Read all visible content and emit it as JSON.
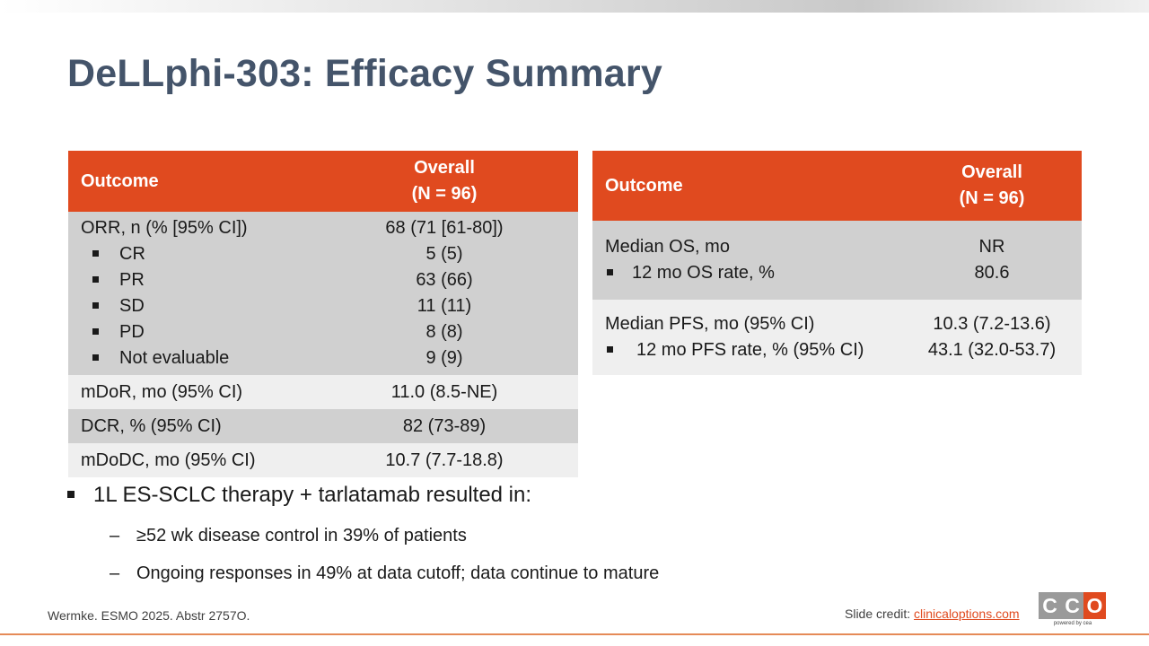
{
  "slide": {
    "title": "DeLLphi-303: Efficacy Summary"
  },
  "left_table": {
    "header": {
      "outcome": "Outcome",
      "overall_line1": "Overall",
      "overall_line2": "(N = 96)"
    },
    "orr": {
      "label": "ORR, n (% [95% CI])",
      "value": "68 (71 [61-80])",
      "items": [
        {
          "label": "CR",
          "value": "5 (5)"
        },
        {
          "label": "PR",
          "value": "63 (66)"
        },
        {
          "label": "SD",
          "value": "11 (11)"
        },
        {
          "label": "PD",
          "value": "8 (8)"
        },
        {
          "label": "Not evaluable",
          "value": "9 (9)"
        }
      ]
    },
    "mdor": {
      "label": "mDoR, mo (95% CI)",
      "value": "11.0 (8.5-NE)"
    },
    "dcr": {
      "label": "DCR, % (95% CI)",
      "value": "82 (73-89)"
    },
    "mdodc": {
      "label": "mDoDC, mo (95% CI)",
      "value": "10.7 (7.7-18.8)"
    }
  },
  "right_table": {
    "header": {
      "outcome": "Outcome",
      "overall_line1": "Overall",
      "overall_line2": "(N = 96)"
    },
    "os": {
      "label": "Median OS, mo",
      "value": "NR",
      "sub_label": "12 mo OS rate, %",
      "sub_value": "80.6"
    },
    "pfs": {
      "label": "Median PFS, mo (95% CI)",
      "value": "10.3 (7.2-13.6)",
      "sub_label": "12 mo PFS rate, % (95% CI)",
      "sub_value": "43.1 (32.0-53.7)"
    }
  },
  "bullets": {
    "main": "1L ES-SCLC therapy + tarlatamab resulted in:",
    "dash": "–",
    "sub1": "≥52 wk disease control in 39% of patients",
    "sub2": "Ongoing responses in 49% at data cutoff; data continue to mature"
  },
  "footer": {
    "reference": "Wermke. ESMO 2025. Abstr 2757O.",
    "credit_label": "Slide credit:",
    "credit_link": "clinicaloptions.com",
    "logo_letters": [
      "C",
      "C",
      "O"
    ],
    "logo_tagline": "powered by cea"
  },
  "colors": {
    "accent": "#e04a1f",
    "title": "#44546a",
    "row_dark": "#d0d0d0",
    "row_light": "#efefef"
  }
}
